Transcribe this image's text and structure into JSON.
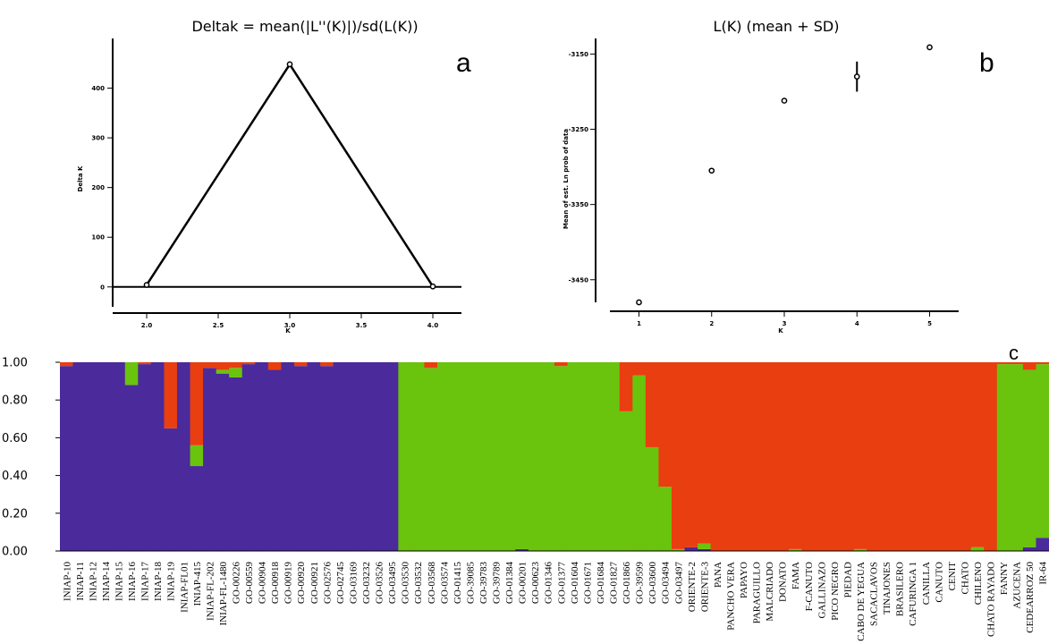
{
  "chart_data": [
    {
      "type": "line",
      "label": "a",
      "title": "Deltak = mean(|L''(K)|)/sd(L(K))",
      "xlabel": "K",
      "ylabel": "Delta K",
      "x": [
        2.0,
        3.0,
        4.0
      ],
      "y": [
        4,
        448,
        1
      ],
      "xticks": [
        "2.0",
        "2.5",
        "3.0",
        "3.5",
        "4.0"
      ],
      "xtick_values": [
        2.0,
        2.5,
        3.0,
        3.5,
        4.0
      ],
      "yticks": [
        "0",
        "100",
        "200",
        "300",
        "400"
      ],
      "ytick_values": [
        0,
        100,
        200,
        300,
        400
      ],
      "xlim": [
        1.8,
        4.2
      ],
      "ylim": [
        -40,
        500
      ]
    },
    {
      "type": "scatter",
      "label": "b",
      "title": "L(K) (mean + SD)",
      "xlabel": "K",
      "ylabel": "Mean of est. Ln prob of data",
      "x": [
        1,
        2,
        3,
        4,
        5
      ],
      "y": [
        -3480,
        -3305,
        -3212,
        -3180,
        -3141
      ],
      "sd": [
        0,
        0,
        0,
        20,
        0
      ],
      "xticks": [
        "1",
        "2",
        "3",
        "4",
        "5"
      ],
      "xtick_values": [
        1,
        2,
        3,
        4,
        5
      ],
      "yticks": [
        "-3450",
        "-3350",
        "-3250",
        "-3150"
      ],
      "ytick_values": [
        -3450,
        -3350,
        -3250,
        -3150
      ],
      "xlim": [
        0.6,
        5.4
      ],
      "ylim": [
        -3480,
        -3140
      ]
    },
    {
      "type": "bar",
      "label": "c",
      "stacked": true,
      "yticks": [
        "0.00",
        "0.20",
        "0.40",
        "0.60",
        "0.80",
        "1.00"
      ],
      "ytick_values": [
        0,
        0.2,
        0.4,
        0.6,
        0.8,
        1.0
      ],
      "ylim": [
        0,
        1
      ],
      "categories": [
        "INIAP-10",
        "INIAP-11",
        "INIAP-12",
        "INIAP-14",
        "INIAP-15",
        "INIAP-16",
        "INIAP-17",
        "INIAP-18",
        "INIAP-19",
        "INIAP-FL01",
        "INIAP-415",
        "INIAP-FL-202",
        "INIAP-FL-1480",
        "GO-00226",
        "GO-00559",
        "GO-00904",
        "GO-00918",
        "GO-00919",
        "GO-00920",
        "GO-00921",
        "GO-02576",
        "GO-02745",
        "GO-03169",
        "GO-03232",
        "GO-03526",
        "GO-03495",
        "GO-03530",
        "GO-03532",
        "GO-03568",
        "GO-03574",
        "GO-01415",
        "GO-39085",
        "GO-39783",
        "GO-39789",
        "GO-01384",
        "GO-00201",
        "GO-00623",
        "GO-01346",
        "GO-01377",
        "GO-01604",
        "GO-01671",
        "GO-01684",
        "GO-01827",
        "GO-01866",
        "GO-39599",
        "GO-03600",
        "GO-03494",
        "GO-03497",
        "ORIENTE-2",
        "ORIENTE-3",
        "PANA",
        "PANCHO VERA",
        "PAPAYO",
        "PARAGUILLO",
        "MALCRIADO",
        "DONATO",
        "FAMA",
        "F-CANUTO",
        "GALLINAZO",
        "PICO NEGRO",
        "PIEDAD",
        "CABO DE YEGUA",
        "SACACLAVOS",
        "TINAJONES",
        "BRASILERO",
        "CAFURINGA 1",
        "CANILLA",
        "CANUTO",
        "CENIT",
        "CHATO",
        "CHILENO",
        "CHATO RAYADO",
        "FANNY",
        "AZUCENA",
        "CEDEARROZ 50",
        "IR-64"
      ],
      "series": [
        {
          "color": "#4b2a9b",
          "values": [
            0.98,
            1,
            1,
            1,
            1,
            0.88,
            0.99,
            1,
            0.65,
            1,
            0.45,
            0.97,
            0.94,
            0.92,
            0.99,
            1,
            0.96,
            1,
            0.98,
            1,
            0.98,
            1,
            1,
            1,
            1,
            1,
            0,
            0,
            0,
            0,
            0,
            0,
            0,
            0,
            0,
            0.01,
            0,
            0,
            0,
            0,
            0,
            0,
            0,
            0,
            0,
            0,
            0,
            0,
            0.02,
            0.01,
            0,
            0,
            0,
            0,
            0,
            0,
            0,
            0,
            0,
            0,
            0,
            0,
            0,
            0,
            0,
            0,
            0,
            0,
            0,
            0,
            0,
            0,
            0,
            0,
            0.02,
            0.07
          ]
        },
        {
          "color": "#6ac30c",
          "values": [
            0,
            0,
            0,
            0,
            0,
            0.12,
            0,
            0,
            0,
            0,
            0.11,
            0,
            0.02,
            0.05,
            0,
            0,
            0,
            0,
            0,
            0,
            0,
            0,
            0,
            0,
            0,
            0,
            1,
            1,
            0.97,
            1,
            1,
            1,
            1,
            1,
            1,
            0.99,
            1,
            1,
            0.98,
            1,
            1,
            1,
            1,
            0.74,
            0.93,
            0.55,
            0.34,
            0.01,
            0,
            0.03,
            0,
            0,
            0,
            0,
            0,
            0,
            0.01,
            0,
            0,
            0,
            0,
            0.01,
            0,
            0,
            0,
            0,
            0,
            0,
            0,
            0,
            0.02,
            0,
            0.99,
            0.99,
            0.94,
            0.92
          ]
        },
        {
          "color": "#e83e10",
          "values": [
            0.02,
            0,
            0,
            0,
            0,
            0,
            0.01,
            0,
            0.35,
            0,
            0.44,
            0.03,
            0.04,
            0.03,
            0.01,
            0,
            0.04,
            0,
            0.02,
            0,
            0.02,
            0,
            0,
            0,
            0,
            0,
            0,
            0,
            0.03,
            0,
            0,
            0,
            0,
            0,
            0,
            0,
            0,
            0,
            0.02,
            0,
            0,
            0,
            0,
            0.26,
            0.07,
            0.45,
            0.66,
            0.99,
            0.98,
            0.96,
            1,
            1,
            1,
            1,
            1,
            1,
            0.99,
            1,
            1,
            1,
            1,
            0.99,
            1,
            1,
            1,
            1,
            1,
            1,
            1,
            1,
            0.98,
            1,
            0.01,
            0.01,
            0.04,
            0.01
          ]
        }
      ]
    }
  ]
}
